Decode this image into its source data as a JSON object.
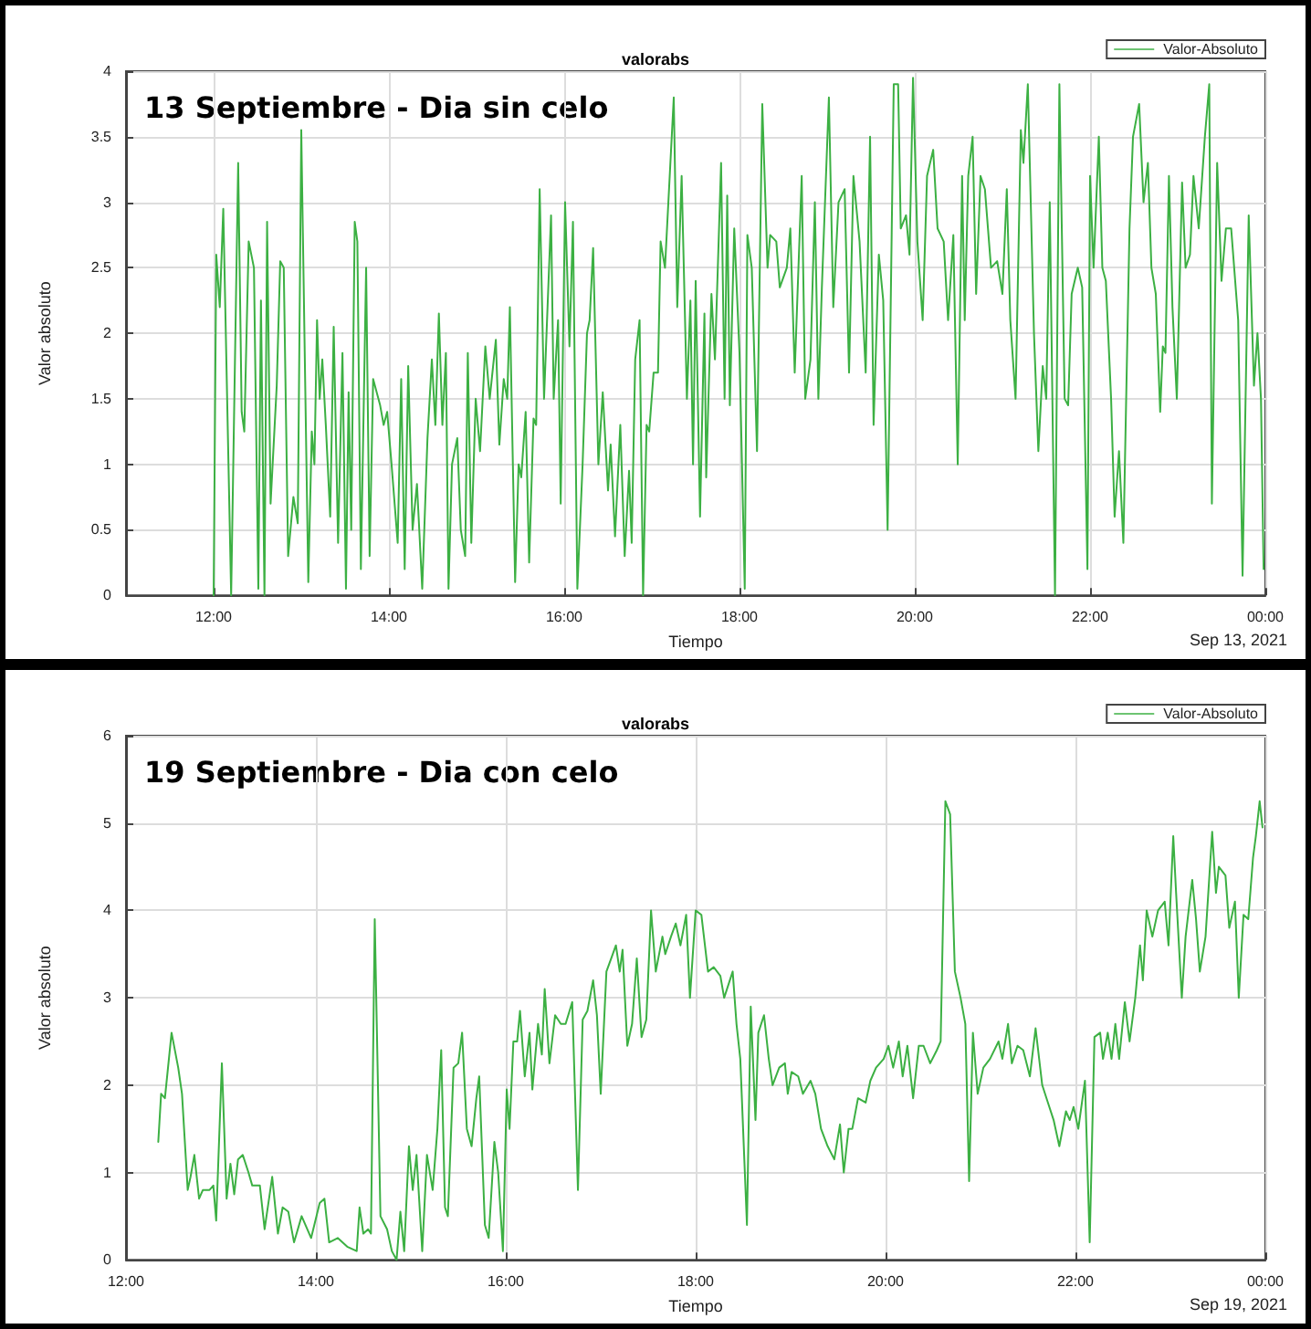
{
  "chart_data": [
    {
      "type": "line",
      "title": "valorabs",
      "subtitle": "13 Septiembre - Dia sin celo",
      "xlabel": "Tiempo",
      "ylabel": "Valor absoluto",
      "annotations": [
        "Sep 13, 2021"
      ],
      "x": [
        12.0,
        12.03,
        12.07,
        12.11,
        12.2,
        12.28,
        12.32,
        12.35,
        12.4,
        12.46,
        12.51,
        12.54,
        12.58,
        12.61,
        12.65,
        12.72,
        12.76,
        12.8,
        12.85,
        12.91,
        12.96,
        13.0,
        13.08,
        13.12,
        13.15,
        13.18,
        13.21,
        13.24,
        13.28,
        13.33,
        13.37,
        13.42,
        13.47,
        13.51,
        13.54,
        13.57,
        13.61,
        13.64,
        13.68,
        13.74,
        13.78,
        13.82,
        13.9,
        13.94,
        13.98,
        14.03,
        14.1,
        14.14,
        14.18,
        14.22,
        14.27,
        14.32,
        14.38,
        14.44,
        14.49,
        14.53,
        14.57,
        14.61,
        14.65,
        14.68,
        14.72,
        14.78,
        14.82,
        14.87,
        14.9,
        14.94,
        14.99,
        15.04,
        15.1,
        15.15,
        15.22,
        15.26,
        15.31,
        15.35,
        15.38,
        15.44,
        15.48,
        15.51,
        15.56,
        15.6,
        15.65,
        15.68,
        15.72,
        15.77,
        15.85,
        15.88,
        15.93,
        15.96,
        16.01,
        16.06,
        16.1,
        16.15,
        16.21,
        16.26,
        16.29,
        16.33,
        16.39,
        16.44,
        16.5,
        16.53,
        16.58,
        16.64,
        16.69,
        16.74,
        16.77,
        16.81,
        16.86,
        16.9,
        16.94,
        16.97,
        17.02,
        17.07,
        17.1,
        17.15,
        17.25,
        17.29,
        17.34,
        17.4,
        17.44,
        17.47,
        17.5,
        17.55,
        17.6,
        17.62,
        17.68,
        17.72,
        17.79,
        17.83,
        17.86,
        17.89,
        17.94,
        18.0,
        18.06,
        18.09,
        18.14,
        18.2,
        18.26,
        18.32,
        18.35,
        18.42,
        18.46,
        18.54,
        18.58,
        18.63,
        18.71,
        18.75,
        18.81,
        18.86,
        18.9,
        18.94,
        19.02,
        19.07,
        19.13,
        19.2,
        19.25,
        19.3,
        19.37,
        19.44,
        19.49,
        19.53,
        19.59,
        19.64,
        19.69,
        19.76,
        19.81,
        19.84,
        19.9,
        19.94,
        19.98,
        20.03,
        20.09,
        20.14,
        20.21,
        20.26,
        20.33,
        20.38,
        20.44,
        20.49,
        20.54,
        20.57,
        20.61,
        20.66,
        20.7,
        20.75,
        20.8,
        20.87,
        20.94,
        21.0,
        21.05,
        21.09,
        21.15,
        21.21,
        21.24,
        21.29,
        21.36,
        21.41,
        21.46,
        21.5,
        21.54,
        21.6,
        21.65,
        21.71,
        21.75,
        21.79,
        21.86,
        21.91,
        21.97,
        22.0,
        22.04,
        22.1,
        22.14,
        22.18,
        22.24,
        22.28,
        22.33,
        22.38,
        22.45,
        22.49,
        22.56,
        22.61,
        22.66,
        22.7,
        22.75,
        22.8,
        22.83,
        22.86,
        22.9,
        22.94,
        22.99,
        23.05,
        23.09,
        23.14,
        23.18,
        23.24,
        23.31,
        23.36,
        23.39,
        23.45,
        23.5,
        23.55,
        23.61,
        23.69,
        23.74,
        23.81,
        23.87,
        23.91,
        23.95,
        23.98
      ],
      "series": [
        {
          "name": "Valor-Absoluto",
          "color": "#3cb043",
          "values": [
            0,
            2.6,
            2.2,
            2.95,
            0,
            3.3,
            1.4,
            1.25,
            2.7,
            2.5,
            0.05,
            2.25,
            0,
            2.85,
            0.7,
            1.6,
            2.55,
            2.5,
            0.3,
            0.75,
            0.55,
            3.55,
            0.1,
            1.25,
            1.0,
            2.1,
            1.5,
            1.8,
            1.3,
            0.6,
            2.05,
            0.4,
            1.85,
            0.05,
            1.55,
            0.5,
            2.85,
            2.7,
            0.2,
            2.5,
            0.3,
            1.65,
            1.45,
            1.3,
            1.4,
            1.0,
            0.4,
            1.65,
            0.2,
            1.75,
            0.5,
            0.85,
            0.05,
            1.2,
            1.8,
            1.3,
            2.15,
            1.3,
            1.85,
            0.05,
            1.0,
            1.2,
            0.5,
            0.3,
            1.85,
            0.4,
            1.5,
            1.1,
            1.9,
            1.5,
            1.95,
            1.15,
            1.65,
            1.5,
            2.2,
            0.1,
            1.0,
            0.9,
            1.4,
            0.25,
            1.35,
            1.3,
            3.1,
            1.5,
            2.9,
            1.5,
            2.1,
            0.7,
            3.0,
            1.9,
            2.85,
            0.05,
            1.0,
            2.0,
            2.1,
            2.65,
            1.0,
            1.55,
            0.8,
            1.15,
            0.45,
            1.3,
            0.3,
            0.95,
            0.4,
            1.8,
            2.1,
            0,
            1.3,
            1.25,
            1.7,
            1.7,
            2.7,
            2.5,
            3.8,
            2.2,
            3.2,
            1.5,
            2.25,
            1.0,
            2.4,
            0.6,
            2.15,
            0.9,
            2.3,
            1.8,
            3.3,
            1.5,
            3.05,
            1.45,
            2.8,
            1.85,
            0.05,
            2.75,
            2.5,
            1.1,
            3.75,
            2.5,
            2.75,
            2.7,
            2.35,
            2.5,
            2.8,
            1.7,
            3.2,
            1.5,
            1.8,
            3.0,
            1.5,
            2.35,
            3.8,
            2.2,
            3.0,
            3.1,
            1.7,
            3.2,
            2.7,
            1.7,
            3.5,
            1.3,
            2.6,
            2.25,
            0.5,
            3.9,
            3.9,
            2.8,
            2.9,
            2.6,
            3.95,
            2.7,
            2.1,
            3.2,
            3.4,
            2.8,
            2.7,
            2.1,
            2.75,
            1.0,
            3.2,
            2.1,
            3.2,
            3.5,
            2.3,
            3.2,
            3.1,
            2.5,
            2.55,
            2.3,
            3.1,
            2.1,
            1.5,
            3.55,
            3.3,
            3.9,
            2.0,
            1.1,
            1.75,
            1.5,
            3.0,
            0,
            3.9,
            1.5,
            1.45,
            2.3,
            2.5,
            2.35,
            0.2,
            3.2,
            2.5,
            3.5,
            2.5,
            2.4,
            1.5,
            0.6,
            1.1,
            0.4,
            2.8,
            3.5,
            3.75,
            3.0,
            3.3,
            2.5,
            2.3,
            1.4,
            1.9,
            1.85,
            3.2,
            2.2,
            1.5,
            3.15,
            2.5,
            2.6,
            3.2,
            2.8,
            3.5,
            3.9,
            0.7,
            3.3,
            2.4,
            2.8,
            2.8,
            2.1,
            0.15,
            2.9,
            1.6,
            2.0,
            1.5,
            0.2
          ]
        }
      ],
      "xlim": [
        11,
        24
      ],
      "xticks": [
        {
          "value": 12,
          "label": "12:00"
        },
        {
          "value": 14,
          "label": "14:00"
        },
        {
          "value": 16,
          "label": "16:00"
        },
        {
          "value": 18,
          "label": "18:00"
        },
        {
          "value": 20,
          "label": "20:00"
        },
        {
          "value": 22,
          "label": "22:00"
        },
        {
          "value": 24,
          "label": "00:00"
        }
      ],
      "ylim": [
        0,
        4
      ],
      "yticks": [
        0,
        0.5,
        1,
        1.5,
        2,
        2.5,
        3,
        3.5,
        4
      ],
      "grid": true,
      "legend": "top right",
      "marker": "none",
      "line_style": "solid"
    },
    {
      "type": "line",
      "title": "valorabs",
      "subtitle": "19 Septiembre - Dia con celo",
      "xlabel": "Tiempo",
      "ylabel": "Valor absoluto",
      "annotations": [
        "Sep 19, 2021"
      ],
      "x": [
        12.34,
        12.37,
        12.41,
        12.48,
        12.55,
        12.59,
        12.65,
        12.68,
        12.72,
        12.77,
        12.81,
        12.88,
        12.92,
        12.95,
        13.01,
        13.06,
        13.1,
        13.14,
        13.18,
        13.23,
        13.29,
        13.33,
        13.41,
        13.46,
        13.54,
        13.6,
        13.65,
        13.71,
        13.77,
        13.85,
        13.95,
        14.04,
        14.09,
        14.14,
        14.23,
        14.33,
        14.43,
        14.46,
        14.5,
        14.55,
        14.58,
        14.62,
        14.68,
        14.75,
        14.8,
        14.85,
        14.89,
        14.93,
        14.98,
        15.02,
        15.06,
        15.12,
        15.17,
        15.23,
        15.28,
        15.32,
        15.36,
        15.39,
        15.45,
        15.5,
        15.54,
        15.59,
        15.64,
        15.69,
        15.72,
        15.78,
        15.82,
        15.88,
        15.92,
        15.97,
        16.01,
        16.04,
        16.08,
        16.12,
        16.15,
        16.2,
        16.25,
        16.28,
        16.34,
        16.38,
        16.41,
        16.46,
        16.52,
        16.58,
        16.63,
        16.7,
        16.76,
        16.81,
        16.86,
        16.92,
        16.96,
        17.0,
        17.06,
        17.11,
        17.16,
        17.2,
        17.23,
        17.28,
        17.33,
        17.38,
        17.43,
        17.48,
        17.53,
        17.58,
        17.65,
        17.68,
        17.74,
        17.79,
        17.84,
        17.9,
        17.94,
        18.0,
        18.06,
        18.13,
        18.19,
        18.26,
        18.3,
        18.39,
        18.43,
        18.47,
        18.54,
        18.58,
        18.63,
        18.66,
        18.72,
        18.77,
        18.81,
        18.88,
        18.94,
        18.97,
        19.01,
        19.08,
        19.13,
        19.21,
        19.26,
        19.32,
        19.39,
        19.46,
        19.52,
        19.56,
        19.61,
        19.65,
        19.71,
        19.79,
        19.84,
        19.9,
        19.98,
        20.03,
        20.08,
        20.14,
        20.18,
        20.23,
        20.29,
        20.35,
        20.4,
        20.47,
        20.54,
        20.58,
        20.63,
        20.68,
        20.73,
        20.79,
        20.84,
        20.88,
        20.92,
        20.97,
        21.03,
        21.1,
        21.19,
        21.23,
        21.29,
        21.33,
        21.39,
        21.45,
        21.52,
        21.58,
        21.65,
        21.71,
        21.77,
        21.83,
        21.9,
        21.94,
        21.98,
        22.03,
        22.1,
        22.15,
        22.2,
        22.26,
        22.29,
        22.34,
        22.38,
        22.42,
        22.46,
        22.52,
        22.57,
        22.63,
        22.68,
        22.71,
        22.75,
        22.81,
        22.87,
        22.94,
        22.98,
        23.03,
        23.06,
        23.12,
        23.16,
        23.23,
        23.27,
        23.31,
        23.37,
        23.44,
        23.48,
        23.51,
        23.58,
        23.62,
        23.68,
        23.72,
        23.77,
        23.82,
        23.87,
        23.9,
        23.94,
        23.97
      ],
      "series": [
        {
          "name": "Valor-Absoluto",
          "color": "#3cb043",
          "values": [
            1.35,
            1.9,
            1.85,
            2.6,
            2.2,
            1.9,
            0.8,
            0.95,
            1.2,
            0.7,
            0.8,
            0.8,
            0.85,
            0.45,
            2.25,
            0.7,
            1.1,
            0.75,
            1.15,
            1.2,
            1.0,
            0.85,
            0.85,
            0.35,
            0.95,
            0.3,
            0.6,
            0.55,
            0.2,
            0.5,
            0.25,
            0.65,
            0.7,
            0.2,
            0.25,
            0.15,
            0.1,
            0.6,
            0.3,
            0.35,
            0.3,
            3.9,
            0.5,
            0.35,
            0.1,
            0,
            0.55,
            0.1,
            1.3,
            0.8,
            1.2,
            0.1,
            1.2,
            0.8,
            1.5,
            2.4,
            0.6,
            0.5,
            2.2,
            2.25,
            2.6,
            1.5,
            1.3,
            1.85,
            2.1,
            0.4,
            0.25,
            1.35,
            1.0,
            0.1,
            1.95,
            1.5,
            2.5,
            2.5,
            2.85,
            2.1,
            2.6,
            1.95,
            2.7,
            2.35,
            3.1,
            2.25,
            2.8,
            2.7,
            2.7,
            2.95,
            0.8,
            2.75,
            2.85,
            3.2,
            2.8,
            1.9,
            3.3,
            3.45,
            3.6,
            3.3,
            3.55,
            2.45,
            2.7,
            3.45,
            2.55,
            2.75,
            4.0,
            3.3,
            3.7,
            3.5,
            3.7,
            3.85,
            3.6,
            3.95,
            3.0,
            4.0,
            3.95,
            3.3,
            3.35,
            3.25,
            3.0,
            3.3,
            2.7,
            2.3,
            0.4,
            2.9,
            1.6,
            2.6,
            2.8,
            2.3,
            2.0,
            2.2,
            2.25,
            1.9,
            2.15,
            2.1,
            1.9,
            2.05,
            1.9,
            1.5,
            1.3,
            1.15,
            1.55,
            1.0,
            1.5,
            1.5,
            1.85,
            1.8,
            2.05,
            2.2,
            2.3,
            2.45,
            2.2,
            2.5,
            2.1,
            2.45,
            1.85,
            2.45,
            2.45,
            2.25,
            2.4,
            2.5,
            5.25,
            5.1,
            3.3,
            3.0,
            2.7,
            0.9,
            2.6,
            1.9,
            2.2,
            2.3,
            2.5,
            2.3,
            2.7,
            2.25,
            2.45,
            2.4,
            2.1,
            2.65,
            2.0,
            1.8,
            1.6,
            1.3,
            1.7,
            1.6,
            1.75,
            1.5,
            2.05,
            0.2,
            2.55,
            2.6,
            2.3,
            2.6,
            2.3,
            2.7,
            2.3,
            2.95,
            2.5,
            3.0,
            3.6,
            3.2,
            4.0,
            3.7,
            4.0,
            4.1,
            3.6,
            4.85,
            4.2,
            3.0,
            3.7,
            4.35,
            3.9,
            3.3,
            3.7,
            4.9,
            4.2,
            4.5,
            4.4,
            3.8,
            4.1,
            3.0,
            3.95,
            3.9,
            4.6,
            4.85,
            5.25,
            4.95
          ]
        }
      ],
      "xlim": [
        12,
        24
      ],
      "xticks": [
        {
          "value": 12,
          "label": "12:00"
        },
        {
          "value": 14,
          "label": "14:00"
        },
        {
          "value": 16,
          "label": "16:00"
        },
        {
          "value": 18,
          "label": "18:00"
        },
        {
          "value": 20,
          "label": "20:00"
        },
        {
          "value": 22,
          "label": "22:00"
        },
        {
          "value": 24,
          "label": "00:00"
        }
      ],
      "ylim": [
        0,
        6
      ],
      "yticks": [
        0,
        1,
        2,
        3,
        4,
        5,
        6
      ],
      "grid": true,
      "legend": "top right",
      "marker": "none",
      "line_style": "solid"
    }
  ]
}
